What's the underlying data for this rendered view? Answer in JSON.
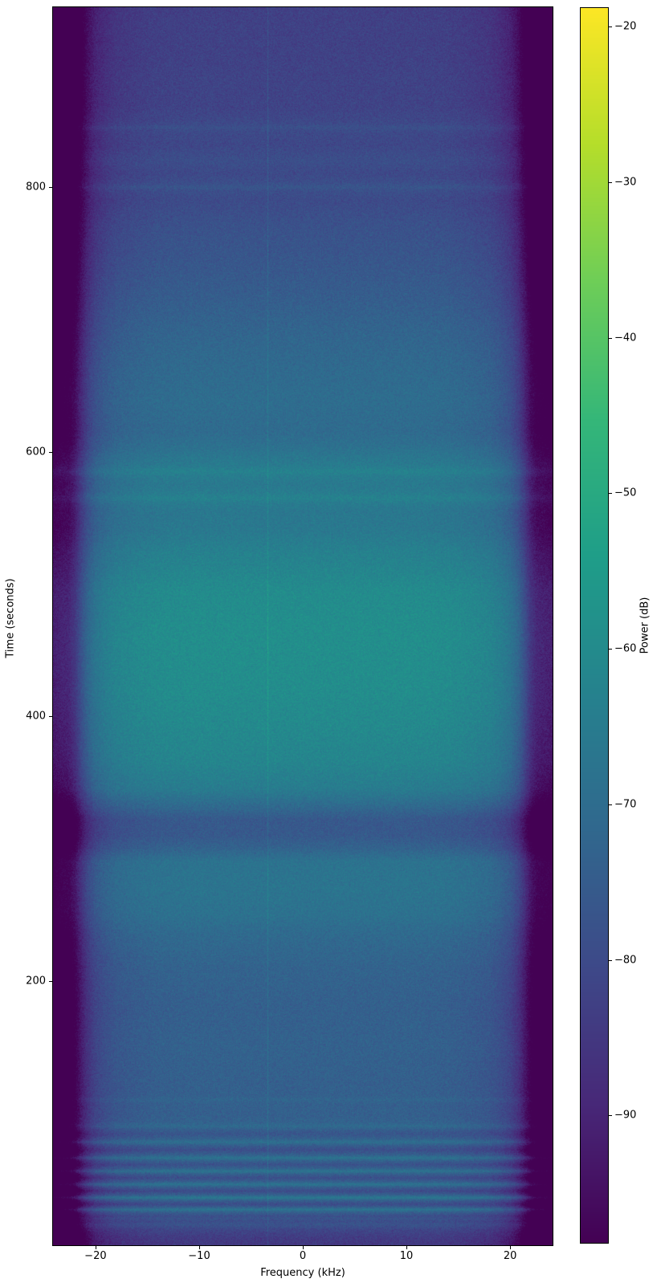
{
  "figure": {
    "background": "#ffffff",
    "border_color": "#000000"
  },
  "chart_data": {
    "type": "heatmap",
    "title": "",
    "xlabel": "Frequency (kHz)",
    "ylabel": "Time (seconds)",
    "colorbar_label": "Power (dB)",
    "colormap": "viridis",
    "x_range_khz": [
      -24.1,
      24.1
    ],
    "y_range_seconds": [
      0,
      936
    ],
    "x_ticks_khz": [
      -20,
      -10,
      0,
      10,
      20
    ],
    "y_ticks_seconds": [
      200,
      400,
      600,
      800
    ],
    "colorbar_ticks_db": [
      -20,
      -30,
      -40,
      -50,
      -60,
      -70,
      -80,
      -90
    ],
    "colorbar_range_db": [
      -98.2,
      -18.8
    ],
    "viridis_stops": [
      "#440154",
      "#482878",
      "#3e4989",
      "#31688e",
      "#26828e",
      "#1f9e89",
      "#35b779",
      "#6ece58",
      "#b5de2b",
      "#fde725"
    ],
    "time_power_profile_db": [
      [
        0,
        -85
      ],
      [
        6,
        -84
      ],
      [
        12,
        -81
      ],
      [
        18,
        -75
      ],
      [
        22,
        -79
      ],
      [
        27,
        -71
      ],
      [
        31,
        -80
      ],
      [
        36,
        -70
      ],
      [
        41,
        -80
      ],
      [
        46,
        -71
      ],
      [
        51,
        -79
      ],
      [
        56,
        -71
      ],
      [
        61,
        -78
      ],
      [
        66,
        -71
      ],
      [
        72,
        -79
      ],
      [
        78,
        -72
      ],
      [
        84,
        -77
      ],
      [
        90,
        -73
      ],
      [
        98,
        -74
      ],
      [
        120,
        -74
      ],
      [
        150,
        -73.5
      ],
      [
        180,
        -74
      ],
      [
        210,
        -73
      ],
      [
        235,
        -71
      ],
      [
        250,
        -68.5
      ],
      [
        270,
        -67.5
      ],
      [
        290,
        -68
      ],
      [
        300,
        -73
      ],
      [
        310,
        -76
      ],
      [
        322,
        -76
      ],
      [
        332,
        -71
      ],
      [
        345,
        -65
      ],
      [
        365,
        -62
      ],
      [
        395,
        -60.5
      ],
      [
        420,
        -59.5
      ],
      [
        460,
        -59
      ],
      [
        495,
        -60
      ],
      [
        510,
        -62
      ],
      [
        525,
        -63.5
      ],
      [
        540,
        -66
      ],
      [
        555,
        -66.5
      ],
      [
        565,
        -64.5
      ],
      [
        575,
        -66
      ],
      [
        585,
        -64.5
      ],
      [
        595,
        -66.5
      ],
      [
        605,
        -69
      ],
      [
        615,
        -70.5
      ],
      [
        640,
        -70
      ],
      [
        665,
        -71
      ],
      [
        690,
        -72.5
      ],
      [
        720,
        -75
      ],
      [
        750,
        -77
      ],
      [
        770,
        -78
      ],
      [
        790,
        -80
      ],
      [
        800,
        -78.5
      ],
      [
        810,
        -80.5
      ],
      [
        820,
        -79
      ],
      [
        832,
        -81
      ],
      [
        845,
        -80
      ],
      [
        860,
        -82
      ],
      [
        880,
        -82
      ],
      [
        900,
        -82.5
      ],
      [
        920,
        -82.5
      ],
      [
        936,
        -83
      ]
    ],
    "stripe_events": [
      [
        18,
        -4,
        1.5
      ],
      [
        27,
        3,
        1.5
      ],
      [
        36,
        3.5,
        1.5
      ],
      [
        46,
        3,
        1.5
      ],
      [
        56,
        3,
        1.5
      ],
      [
        66,
        3,
        1.5
      ],
      [
        78,
        2.5,
        2
      ],
      [
        90,
        2,
        2
      ],
      [
        110,
        1.5,
        2
      ],
      [
        565,
        1.5,
        3
      ],
      [
        585,
        1.5,
        3
      ],
      [
        800,
        1.5,
        2
      ],
      [
        845,
        1.5,
        2
      ]
    ],
    "edge_rolloff_db": [
      [
        0,
        0
      ],
      [
        10,
        0
      ],
      [
        14,
        -0.5
      ],
      [
        16,
        -1.5
      ],
      [
        18,
        -3
      ],
      [
        19,
        -5
      ],
      [
        20,
        -8
      ],
      [
        20.8,
        -13
      ],
      [
        21.4,
        -19
      ],
      [
        22,
        -26
      ],
      [
        22.6,
        -30
      ],
      [
        24.1,
        -32
      ]
    ],
    "tone_line_khz": -3.4,
    "tone_line_boost_db": 5,
    "noise_db": 2.2
  }
}
